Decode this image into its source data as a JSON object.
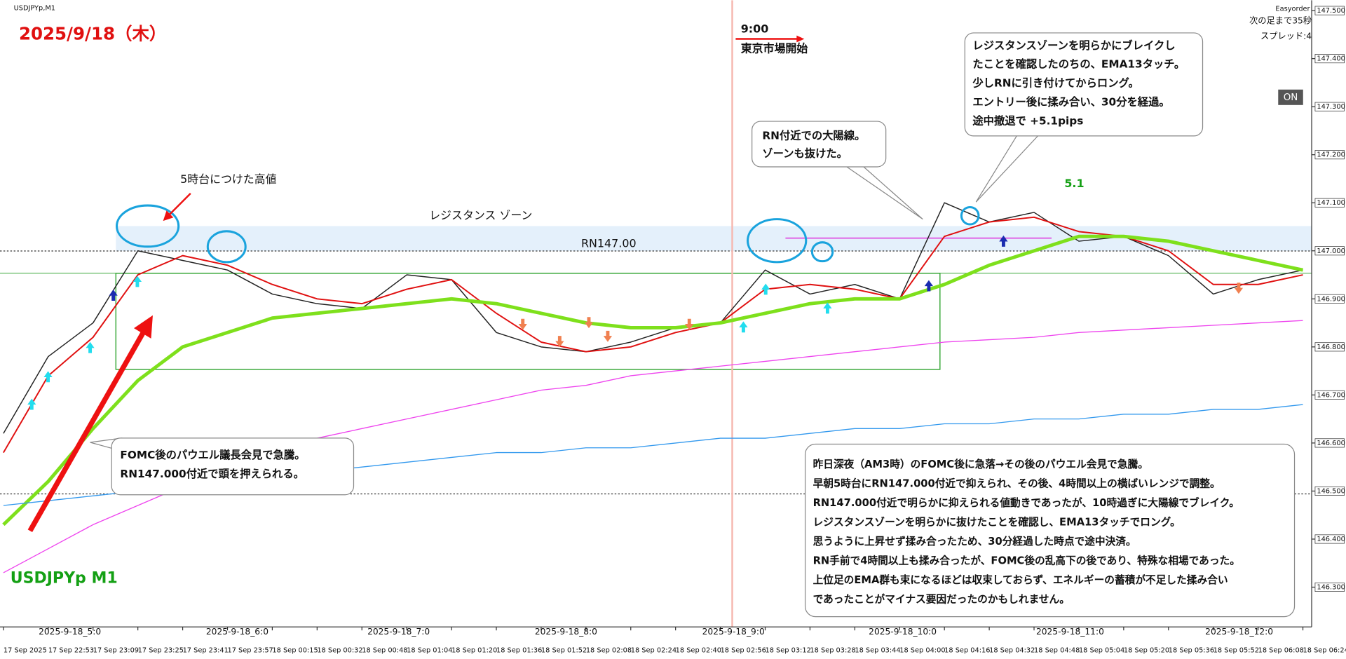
{
  "chart_data": {
    "type": "line",
    "title": "USDJPYp,M1",
    "categories": [
      "17 Sep 2025",
      "17 Sep 22:53",
      "17 Sep 23:09",
      "17 Sep 23:25",
      "17 Sep 23:41",
      "17 Sep 23:57",
      "18 Sep 00:15",
      "18 Sep 00:32",
      "18 Sep 00:48",
      "18 Sep 01:04",
      "18 Sep 01:20",
      "18 Sep 01:36",
      "18 Sep 01:52",
      "18 Sep 02:08",
      "18 Sep 02:24",
      "18 Sep 02:40",
      "18 Sep 02:56",
      "18 Sep 03:12",
      "18 Sep 03:28",
      "18 Sep 03:44",
      "18 Sep 04:00",
      "18 Sep 04:16",
      "18 Sep 04:32",
      "18 Sep 04:48",
      "18 Sep 05:04",
      "18 Sep 05:20",
      "18 Sep 05:36",
      "18 Sep 05:52",
      "18 Sep 06:08",
      "18 Sep 06:24"
    ],
    "series": [
      {
        "color": "#222222",
        "values": [
          146.62,
          146.78,
          146.85,
          147.0,
          146.98,
          146.96,
          146.91,
          146.89,
          146.88,
          146.95,
          146.94,
          146.83,
          146.8,
          146.79,
          146.81,
          146.84,
          146.85,
          146.96,
          146.91,
          146.93,
          146.9,
          147.1,
          147.06,
          147.08,
          147.02,
          147.03,
          146.99,
          146.91,
          146.94,
          146.96
        ]
      },
      {
        "color": "#e01010",
        "values": [
          146.58,
          146.74,
          146.82,
          146.95,
          146.99,
          146.97,
          146.93,
          146.9,
          146.89,
          146.92,
          146.94,
          146.87,
          146.81,
          146.79,
          146.8,
          146.83,
          146.85,
          146.92,
          146.93,
          146.92,
          146.9,
          147.03,
          147.06,
          147.07,
          147.04,
          147.03,
          147.0,
          146.93,
          146.93,
          146.95
        ]
      },
      {
        "color": "#7ee01c",
        "values": [
          146.43,
          146.52,
          146.63,
          146.73,
          146.8,
          146.83,
          146.86,
          146.87,
          146.88,
          146.89,
          146.9,
          146.89,
          146.87,
          146.85,
          146.84,
          146.84,
          146.85,
          146.87,
          146.89,
          146.9,
          146.9,
          146.93,
          146.97,
          147.0,
          147.03,
          147.03,
          147.02,
          147.0,
          146.98,
          146.96
        ]
      },
      {
        "color": "#ee44ee",
        "values": [
          146.33,
          146.38,
          146.43,
          146.47,
          146.51,
          146.55,
          146.58,
          146.61,
          146.63,
          146.65,
          146.67,
          146.69,
          146.71,
          146.72,
          146.74,
          146.75,
          146.76,
          146.77,
          146.78,
          146.79,
          146.8,
          146.81,
          146.815,
          146.82,
          146.83,
          146.835,
          146.84,
          146.845,
          146.85,
          146.855
        ]
      },
      {
        "color": "#3399ee",
        "values": [
          146.47,
          146.48,
          146.49,
          146.5,
          146.51,
          146.52,
          146.53,
          146.54,
          146.55,
          146.56,
          146.57,
          146.58,
          146.58,
          146.59,
          146.59,
          146.6,
          146.61,
          146.61,
          146.62,
          146.63,
          146.63,
          146.64,
          146.64,
          146.65,
          146.65,
          146.66,
          146.66,
          146.67,
          146.67,
          146.68
        ]
      }
    ],
    "ylim": [
      146.21,
      147.5
    ],
    "yticks": [
      {
        "value": 147.5,
        "label": "147.500"
      },
      {
        "value": 147.4,
        "label": "147.400"
      },
      {
        "value": 147.3,
        "label": "147.300"
      },
      {
        "value": 147.2,
        "label": "147.200"
      },
      {
        "value": 147.1,
        "label": "147.100"
      },
      {
        "value": 147.0,
        "label": "147.000"
      },
      {
        "value": 146.9,
        "label": "146.900"
      },
      {
        "value": 146.8,
        "label": "146.800"
      },
      {
        "value": 146.7,
        "label": "146.700"
      },
      {
        "value": 146.6,
        "label": "146.600"
      },
      {
        "value": 146.5,
        "label": "146.500"
      },
      {
        "value": 146.4,
        "label": "146.400"
      },
      {
        "value": 146.3,
        "label": "146.300"
      }
    ],
    "grid": false,
    "time_labels": [
      "2025-9-18_5:0",
      "2025-9-18_6:0",
      "2025-9-18_7:0",
      "2025-9-18_8:0",
      "2025-9-18_9:0",
      "2025-9-18_10:0",
      "2025-9-18_11:0",
      "2025-9-18_12:0"
    ],
    "header": {
      "easyorder": "Easyorder",
      "next_bar": "次の足まで35秒",
      "spread": "スプレッド:4",
      "on": "ON"
    },
    "annotations": {
      "date": "2025/9/18（木）",
      "time": "9:00",
      "tokyo": "東京市場開始",
      "high": "5時台につけた高値",
      "zone": "レジスタンス ゾーン",
      "rn": "RN147.00",
      "pips": "5.1",
      "symbol": "USDJPYp M1",
      "callout_fomc": [
        "FOMC後のパウエル議長会見で急騰。",
        "RN147.000付近で頭を押えられる。"
      ],
      "callout_rn": [
        "RN付近での大陽線。",
        "ゾーンも抜けた。"
      ],
      "callout_entry": [
        "レジスタンスゾーンを明らかにブレイクし",
        "たことを確認したのちの、EMA13タッチ。",
        "少しRNに引き付けてからロング。",
        "エントリー後に揉み合い、30分を経過。",
        "途中撤退で +5.1pips"
      ],
      "summary": [
        "昨日深夜（AM3時）のFOMC後に急落→その後のパウエル会見で急騰。",
        "早朝5時台にRN147.000付近で抑えられ、その後、4時間以上の横ばいレンジで調整。",
        "RN147.000付近で明らかに抑えられる値動きであったが、10時過ぎに大陽線でブレイク。",
        "レジスタンスゾーンを明らかに抜けたことを確認し、EMA13タッチでロング。",
        "思うように上昇せず揉み合ったため、30分経過した時点で途中決済。",
        "RN手前で4時間以上も揉み合ったが、FOMC後の乱高下の後であり、特殊な相場であった。",
        "上位足のEMA群も束になるほどは収束しておらず、エネルギーの蓄積が不足した揉み合い",
        "であったことがマイナス要因だったのかもしれません。"
      ]
    }
  }
}
